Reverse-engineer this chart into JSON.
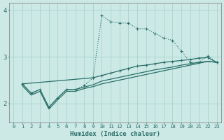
{
  "xlabel": "Humidex (Indice chaleur)",
  "bg_color": "#cce9e5",
  "line_color": "#2a6e68",
  "grid_color": "#a8d4cf",
  "xlim": [
    -0.5,
    23.5
  ],
  "ylim": [
    1.6,
    4.15
  ],
  "yticks": [
    2,
    3,
    4
  ],
  "xticks": [
    0,
    1,
    2,
    3,
    4,
    5,
    6,
    7,
    8,
    9,
    10,
    11,
    12,
    13,
    14,
    15,
    16,
    17,
    18,
    19,
    20,
    21,
    22,
    23
  ],
  "curve1_x": [
    1,
    2,
    3,
    4,
    5,
    6,
    7,
    8,
    9,
    10,
    11,
    12,
    13,
    14,
    15,
    16,
    17,
    18,
    19,
    20,
    21,
    22,
    23
  ],
  "curve1_y": [
    2.42,
    2.22,
    2.3,
    1.92,
    2.12,
    2.3,
    2.3,
    2.38,
    2.55,
    3.88,
    3.75,
    3.72,
    3.72,
    3.6,
    3.6,
    3.5,
    3.4,
    3.35,
    3.12,
    2.88,
    2.88,
    3.02,
    2.88
  ],
  "curve1_marker": "+",
  "curve2_x": [
    1,
    2,
    3,
    4,
    5,
    6,
    7,
    8,
    9,
    10,
    11,
    12,
    13,
    14,
    15,
    16,
    17,
    18,
    19,
    20,
    21,
    22,
    23
  ],
  "curve2_y": [
    2.42,
    2.22,
    2.3,
    1.92,
    2.12,
    2.3,
    2.3,
    2.35,
    2.4,
    2.48,
    2.52,
    2.56,
    2.6,
    2.64,
    2.68,
    2.72,
    2.75,
    2.78,
    2.82,
    2.85,
    2.88,
    2.9,
    2.88
  ],
  "curve2_marker": null,
  "curve3_x": [
    1,
    2,
    3,
    4,
    5,
    6,
    7,
    8,
    9,
    10,
    11,
    12,
    13,
    14,
    15,
    16,
    17,
    18,
    19,
    20,
    21,
    22,
    23
  ],
  "curve3_y": [
    2.38,
    2.18,
    2.26,
    1.88,
    2.08,
    2.26,
    2.26,
    2.32,
    2.36,
    2.42,
    2.46,
    2.5,
    2.54,
    2.58,
    2.62,
    2.66,
    2.7,
    2.74,
    2.78,
    2.82,
    2.86,
    2.9,
    2.88
  ],
  "curve3_marker": null,
  "curve4_x": [
    1,
    9,
    10,
    11,
    12,
    13,
    14,
    15,
    16,
    17,
    18,
    19,
    20,
    21,
    22,
    23
  ],
  "curve4_y": [
    2.42,
    2.55,
    2.6,
    2.65,
    2.7,
    2.75,
    2.8,
    2.82,
    2.85,
    2.88,
    2.9,
    2.92,
    2.94,
    2.97,
    2.98,
    2.88
  ],
  "curve4_marker": "+"
}
